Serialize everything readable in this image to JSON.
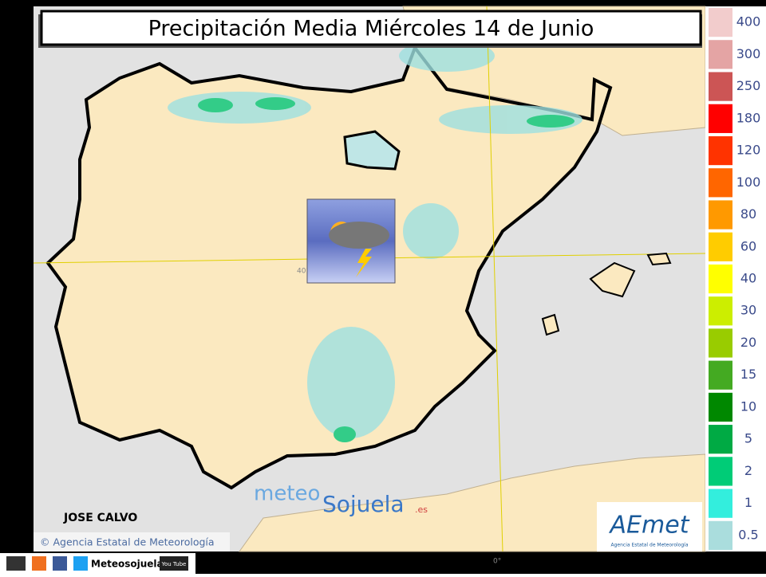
{
  "title": "Precipitación Media Miércoles 14 de Junio",
  "legend": {
    "items": [
      {
        "label": "400",
        "color": "#f2cccc"
      },
      {
        "label": "300",
        "color": "#e4a4a4"
      },
      {
        "label": "250",
        "color": "#cc5555"
      },
      {
        "label": "180",
        "color": "#ff0000"
      },
      {
        "label": "120",
        "color": "#ff3300"
      },
      {
        "label": "100",
        "color": "#ff6600"
      },
      {
        "label": "80",
        "color": "#ff9900"
      },
      {
        "label": "60",
        "color": "#ffcc00"
      },
      {
        "label": "40",
        "color": "#ffff00"
      },
      {
        "label": "30",
        "color": "#ccee00"
      },
      {
        "label": "20",
        "color": "#99cc00"
      },
      {
        "label": "15",
        "color": "#44aa22"
      },
      {
        "label": "10",
        "color": "#008800"
      },
      {
        "label": "5",
        "color": "#00aa44"
      },
      {
        "label": "2",
        "color": "#00cc77"
      },
      {
        "label": "1",
        "color": "#33eedd"
      },
      {
        "label": "0.5",
        "color": "#aadddd"
      }
    ]
  },
  "author": "JOSE CALVO",
  "attribution": "© Agencia Estatal de Meteorología",
  "logo": {
    "part1": "meteo",
    "part2": "Sojuela",
    "suffix": ".es"
  },
  "aemet": {
    "name": "AEmet",
    "subtitle": "Agencia Estatal de Meteorología"
  },
  "footer": {
    "name": "Meteosojuela",
    "youtube": "You Tube"
  },
  "map_labels": {
    "lat": "40°",
    "lon": "0°"
  }
}
